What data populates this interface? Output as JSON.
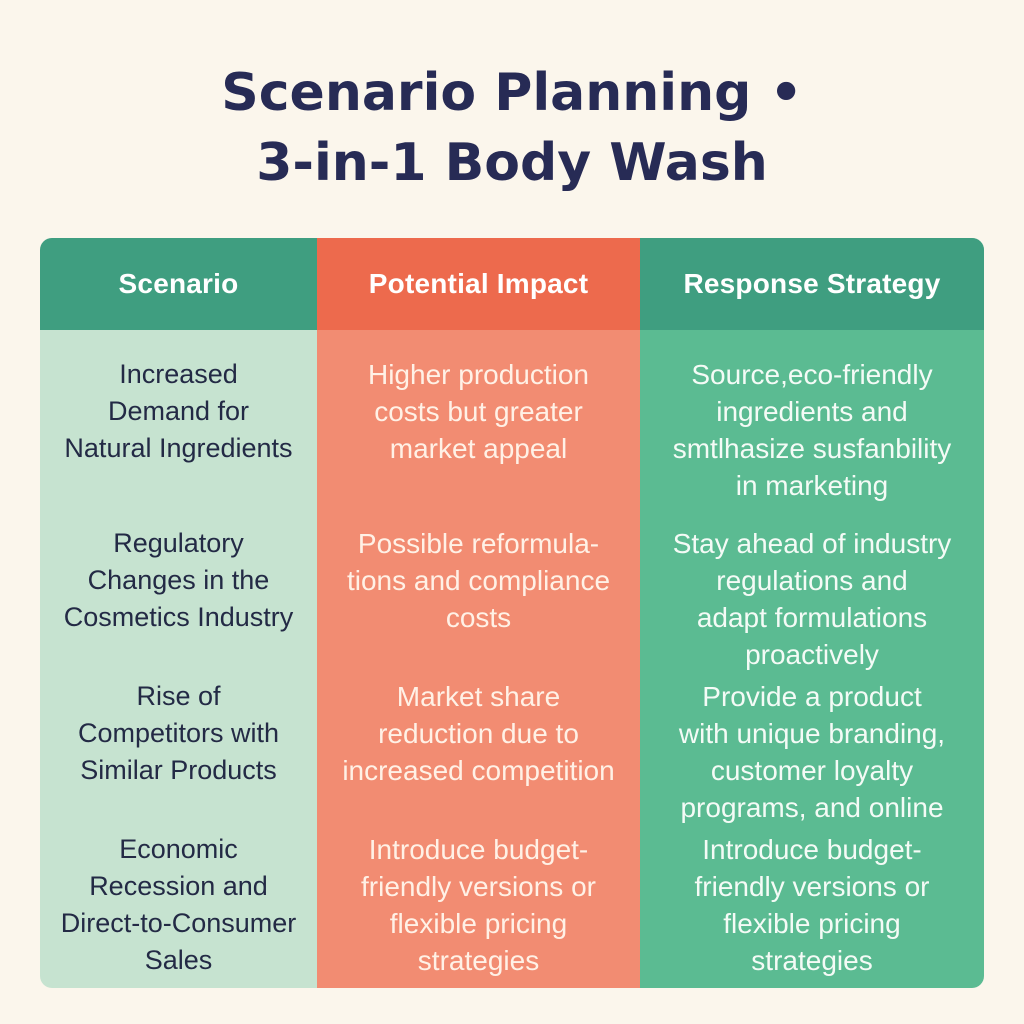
{
  "title": {
    "line1": "Scenario Planning •",
    "line2": "3-in-1 Body Wash"
  },
  "columns": {
    "scenario": "Scenario",
    "impact": "Potential Impact",
    "strategy": "Response Strategy"
  },
  "rows": [
    {
      "scenario": "Increased\nDemand for\nNatural Ingredients",
      "impact": "Higher production\ncosts but greater\nmarket appeal",
      "strategy": "Source,eco-friendly\ningredients and\nsmtlhasize susfanbility\nin marketing"
    },
    {
      "scenario": "Regulatory\nChanges in the\nCosmetics Industry",
      "impact": "Possible reformula-\ntions and compliance\ncosts",
      "strategy": "Stay ahead of industry\nregulations and\nadapt formulations\nproactively"
    },
    {
      "scenario": "Rise of\nCompetitors with\nSimilar Products",
      "impact": "Market share\nreduction due to\nincreased competition",
      "strategy": "Provide a product\nwith unique branding,\ncustomer loyalty\nprograms, and online"
    },
    {
      "scenario": "Economic\nRecession and\nDirect-to-Consumer\nSales",
      "impact": "Introduce budget-\nfriendly versions or\nflexible pricing\nstrategies",
      "strategy": "Introduce  budget-\nfriendly versions or\nflexible pricing\nstrategies"
    }
  ],
  "colors": {
    "title": "#272b55",
    "scenario_header": "#3f9e80",
    "scenario_body": "#c6e3d0",
    "impact_header": "#ed6a4d",
    "impact_body": "#f28c72",
    "strategy_header": "#3f9e80",
    "strategy_body": "#5bbb92"
  }
}
